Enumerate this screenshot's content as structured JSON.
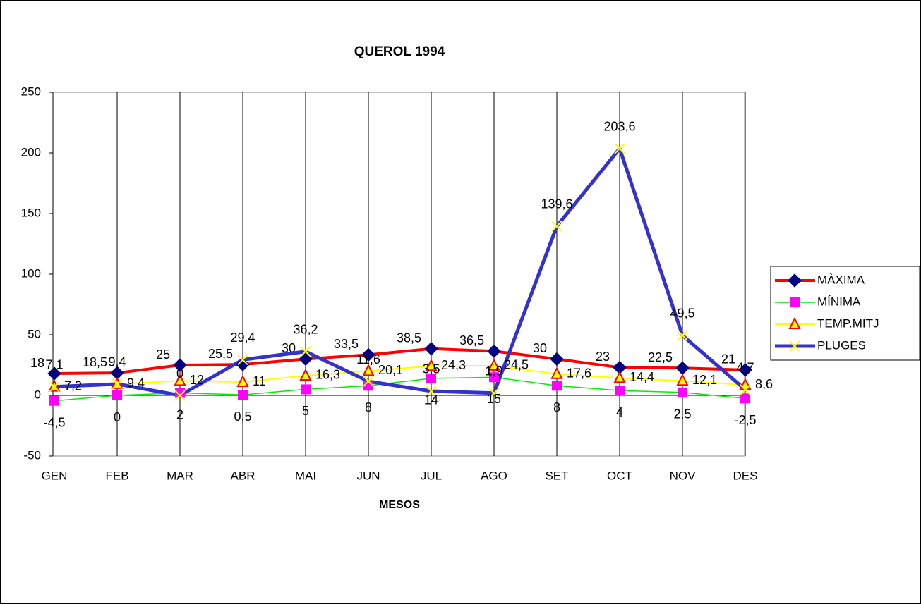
{
  "chart_data": {
    "type": "line",
    "title": "QUEROL  1994",
    "x_label": "MESOS",
    "categories": [
      "GEN",
      "FEB",
      "MAR",
      "ABR",
      "MAI",
      "JUN",
      "JUL",
      "AGO",
      "SET",
      "OCT",
      "NOV",
      "DES"
    ],
    "ylim": [
      -50,
      250
    ],
    "yticks": [
      -50,
      0,
      50,
      100,
      150,
      200,
      250
    ],
    "legend": "right",
    "series": [
      {
        "name": "MÀXIMA",
        "color": "#ff0000",
        "marker_color": "#000080",
        "marker": "diamond",
        "values": [
          18,
          18.5,
          25,
          25.5,
          30,
          33.5,
          38.5,
          36.5,
          30,
          23,
          22.5,
          21
        ],
        "value_labels": [
          "18",
          "18,5",
          "25",
          "25,5",
          "30",
          "33,5",
          "38,5",
          "36,5",
          "30",
          "23",
          "22,5",
          "21"
        ]
      },
      {
        "name": "MÍNIMA",
        "color": "#00ee00",
        "marker_color": "#ff00ff",
        "marker": "square",
        "values": [
          -4.5,
          0,
          2,
          0.5,
          5,
          8,
          14,
          15,
          8,
          4,
          2.5,
          -2.5
        ],
        "value_labels": [
          "-4,5",
          "0",
          "2",
          "0,5",
          "5",
          "8",
          "14",
          "15",
          "8",
          "4",
          "2,5",
          "-2,5"
        ]
      },
      {
        "name": "TEMP.MITJ",
        "color": "#ffff00",
        "marker_color": "#ff0000",
        "marker": "triangle",
        "values": [
          7.2,
          9.4,
          12,
          11,
          16.3,
          20.1,
          24.3,
          24.5,
          17.6,
          14.4,
          12.1,
          8.6
        ],
        "value_labels": [
          "7,2",
          "9,4",
          "12",
          "11",
          "16,3",
          "20,1",
          "24,3",
          "24,5",
          "17,6",
          "14,4",
          "12,1",
          "8,6"
        ]
      },
      {
        "name": "PLUGES",
        "color": "#3333cc",
        "marker_color": "#ffff00",
        "marker": "x",
        "values": [
          7.1,
          9.4,
          0,
          29.4,
          36.2,
          11.6,
          3.5,
          1.9,
          139.6,
          203.6,
          49.5,
          4.7
        ],
        "value_labels": [
          "7,1",
          "9,4",
          "0",
          "29,4",
          "36,2",
          "11,6",
          "3,5",
          "1,9",
          "139,6",
          "203,6",
          "49,5",
          "4,7"
        ]
      }
    ]
  }
}
